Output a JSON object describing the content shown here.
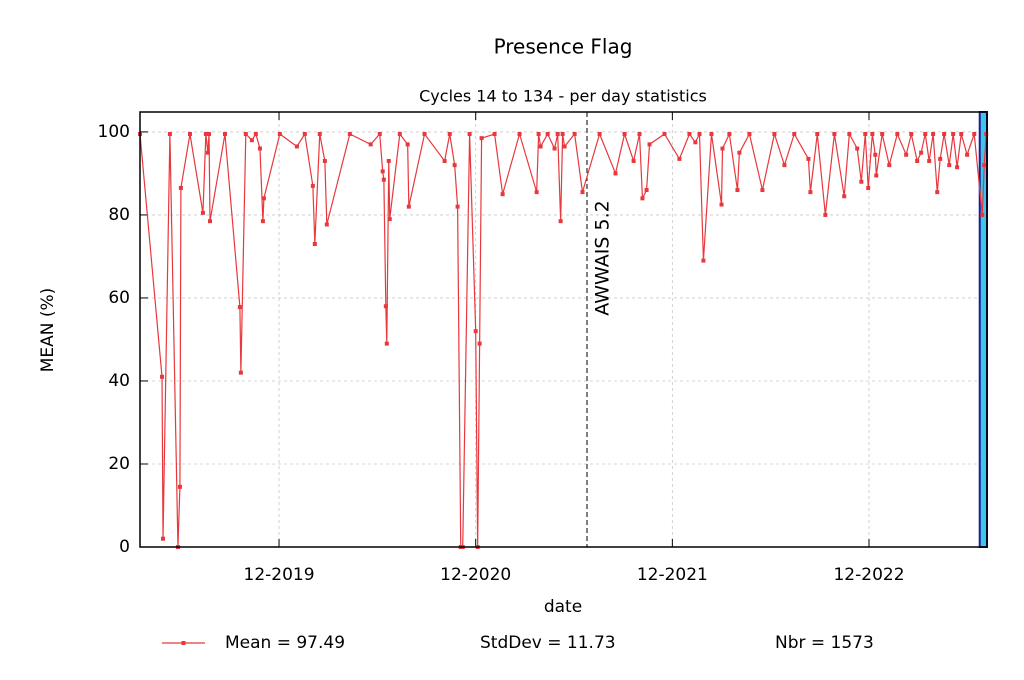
{
  "chart_data": {
    "type": "line",
    "title": "Presence Flag",
    "subtitle": "Cycles 14 to 134 - per day statistics",
    "x_label": "date",
    "y_label": "MEAN (%)",
    "x": [
      2019.21,
      2019.322,
      2019.327,
      2019.362,
      2019.403,
      2019.413,
      2019.418,
      2019.464,
      2019.53,
      2019.545,
      2019.555,
      2019.561,
      2019.566,
      2019.642,
      2019.718,
      2019.723,
      2019.748,
      2019.779,
      2019.799,
      2019.82,
      2019.835,
      2019.84,
      2019.921,
      2020.008,
      2020.048,
      2020.089,
      2020.099,
      2020.124,
      2020.15,
      2020.16,
      2020.277,
      2020.383,
      2020.429,
      2020.444,
      2020.45,
      2020.46,
      2020.465,
      2020.475,
      2020.48,
      2020.531,
      2020.571,
      2020.577,
      2020.657,
      2020.759,
      2020.785,
      2020.81,
      2020.825,
      2020.841,
      2020.851,
      2020.886,
      2020.917,
      2020.927,
      2020.937,
      2020.947,
      2021.013,
      2021.054,
      2021.14,
      2021.227,
      2021.237,
      2021.247,
      2021.283,
      2021.318,
      2021.334,
      2021.349,
      2021.359,
      2021.369,
      2021.42,
      2021.46,
      2021.547,
      2021.628,
      2021.674,
      2021.72,
      2021.75,
      2021.765,
      2021.786,
      2021.801,
      2021.877,
      2021.953,
      2022.004,
      2022.034,
      2022.055,
      2022.075,
      2022.116,
      2022.167,
      2022.172,
      2022.207,
      2022.248,
      2022.258,
      2022.309,
      2022.375,
      2022.436,
      2022.487,
      2022.537,
      2022.609,
      2022.619,
      2022.654,
      2022.695,
      2022.741,
      2022.791,
      2022.817,
      2022.857,
      2022.878,
      2022.898,
      2022.913,
      2022.934,
      2022.949,
      2022.954,
      2022.984,
      2023.02,
      2023.061,
      2023.106,
      2023.132,
      2023.162,
      2023.182,
      2023.203,
      2023.223,
      2023.243,
      2023.264,
      2023.279,
      2023.299,
      2023.325,
      2023.345,
      2023.365,
      2023.386,
      2023.416,
      2023.452,
      2023.493,
      2023.503,
      2023.513
    ],
    "series": [
      {
        "name": "Mean = 97.49",
        "color": "#e8383d",
        "values": [
          99.5,
          41,
          2,
          99.5,
          0,
          14.5,
          86.5,
          99.5,
          80.5,
          99.5,
          95,
          99.5,
          78.5,
          99.5,
          57.8,
          42,
          99.5,
          98,
          99.5,
          96,
          78.5,
          84,
          99.5,
          96.5,
          99.5,
          87,
          73,
          99.5,
          93,
          77.7,
          99.5,
          97,
          99.5,
          90.5,
          88.5,
          58,
          49,
          93,
          79,
          99.5,
          97,
          82,
          99.5,
          93,
          99.5,
          92,
          82,
          0,
          0,
          99.5,
          52,
          0,
          49,
          98.5,
          99.5,
          85,
          99.5,
          85.5,
          99.5,
          96.5,
          99.5,
          96,
          99.5,
          78.5,
          99.5,
          96.5,
          99.5,
          85.5,
          99.5,
          90,
          99.5,
          93,
          99.5,
          84,
          86,
          97,
          99.5,
          93.5,
          99.5,
          97.5,
          99.5,
          69,
          99.5,
          82.5,
          96,
          99.5,
          86,
          95,
          99.5,
          86,
          99.5,
          92,
          99.5,
          93.5,
          85.5,
          99.5,
          80,
          99.5,
          84.5,
          99.5,
          96,
          88,
          99.5,
          86.5,
          99.5,
          94.5,
          89.5,
          99.5,
          92,
          99.5,
          94.5,
          99.5,
          93,
          95,
          99.5,
          93,
          99.5,
          85.5,
          93.5,
          99.5,
          92,
          99.5,
          91.5,
          99.5,
          94.5,
          99.5,
          80,
          92,
          99.5
        ]
      }
    ],
    "stats": [
      "StdDev = 11.73",
      "Nbr = 1573"
    ],
    "xlim": [
      2019.21,
      2023.517
    ],
    "xticks": [
      {
        "value": 2019.917,
        "label": "12-2019"
      },
      {
        "value": 2020.917,
        "label": "12-2020"
      },
      {
        "value": 2021.917,
        "label": "12-2021"
      },
      {
        "value": 2022.917,
        "label": "12-2022"
      }
    ],
    "ylim": [
      0,
      104.8
    ],
    "yticks": [
      0,
      20,
      40,
      60,
      80,
      100
    ],
    "grid": true,
    "annotation": {
      "x": 2021.483,
      "text": "AWWAIS 5.2"
    },
    "highlight_span": [
      2023.48,
      2023.517
    ],
    "highlight_color": "#3dc6e6"
  }
}
